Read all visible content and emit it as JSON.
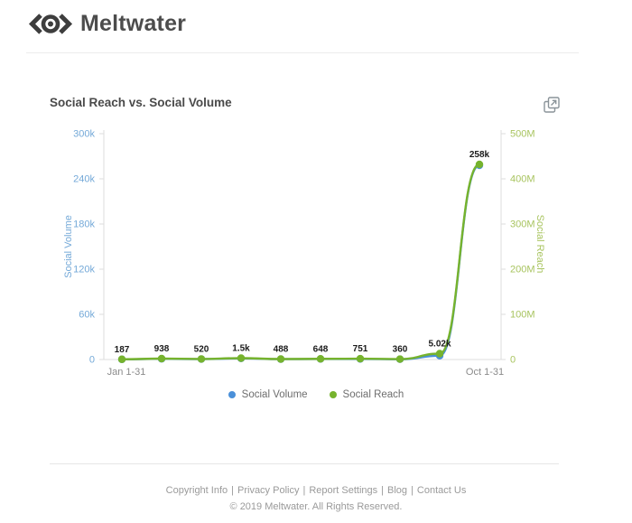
{
  "brand": {
    "name": "Meltwater",
    "logo_icon": "meltwater-eye-icon",
    "logo_color": "#3e3e3e",
    "text_color": "#4c4c4c"
  },
  "report": {
    "title": "Social Reach vs. Social Volume",
    "export_icon": "open-in-new-window-icon",
    "export_icon_color": "#8a9399"
  },
  "chart_data": {
    "type": "line",
    "title": "Social Reach vs. Social Volume",
    "categories": [
      "Jan 1-31",
      "",
      "",
      "",
      "",
      "",
      "",
      "",
      "",
      "Oct 1-31"
    ],
    "series": [
      {
        "name": "Social Volume",
        "axis": "left",
        "color": "#4a90d9",
        "values": [
          187,
          938,
          520,
          1500,
          488,
          648,
          751,
          360,
          5020,
          258000
        ],
        "point_labels": [
          "187",
          "938",
          "520",
          "1.5k",
          "488",
          "648",
          "751",
          "360",
          "5.02k",
          "258k"
        ]
      },
      {
        "name": "Social Reach",
        "axis": "right",
        "color": "#76b32d",
        "values": [
          500000,
          2000000,
          1200000,
          3000000,
          1000000,
          1500000,
          1800000,
          900000,
          13000000,
          432000000
        ],
        "estimated": true
      }
    ],
    "left_axis": {
      "label": "Social Volume",
      "color": "#74a9d8",
      "min": 0,
      "max": 300000,
      "ticks": [
        "0",
        "60k",
        "120k",
        "180k",
        "240k",
        "300k"
      ]
    },
    "right_axis": {
      "label": "Social Reach",
      "color": "#a8c45f",
      "min": 0,
      "max": 500000000,
      "ticks": [
        "0",
        "100M",
        "200M",
        "300M",
        "400M",
        "500M"
      ]
    },
    "legend": [
      {
        "label": "Social Volume",
        "color": "#4a90d9"
      },
      {
        "label": "Social Reach",
        "color": "#76b32d"
      }
    ],
    "legend_position": "bottom",
    "grid": false,
    "point_label_color": "#1b1b1b",
    "x_label_color": "#8b8b8b",
    "axis_line_color": "#dddddd"
  },
  "footer": {
    "links": [
      "Copyright Info",
      "Privacy Policy",
      "Report Settings",
      "Blog",
      "Contact Us"
    ],
    "separator": "|",
    "copyright": "© 2019 Meltwater. All Rights Reserved."
  }
}
